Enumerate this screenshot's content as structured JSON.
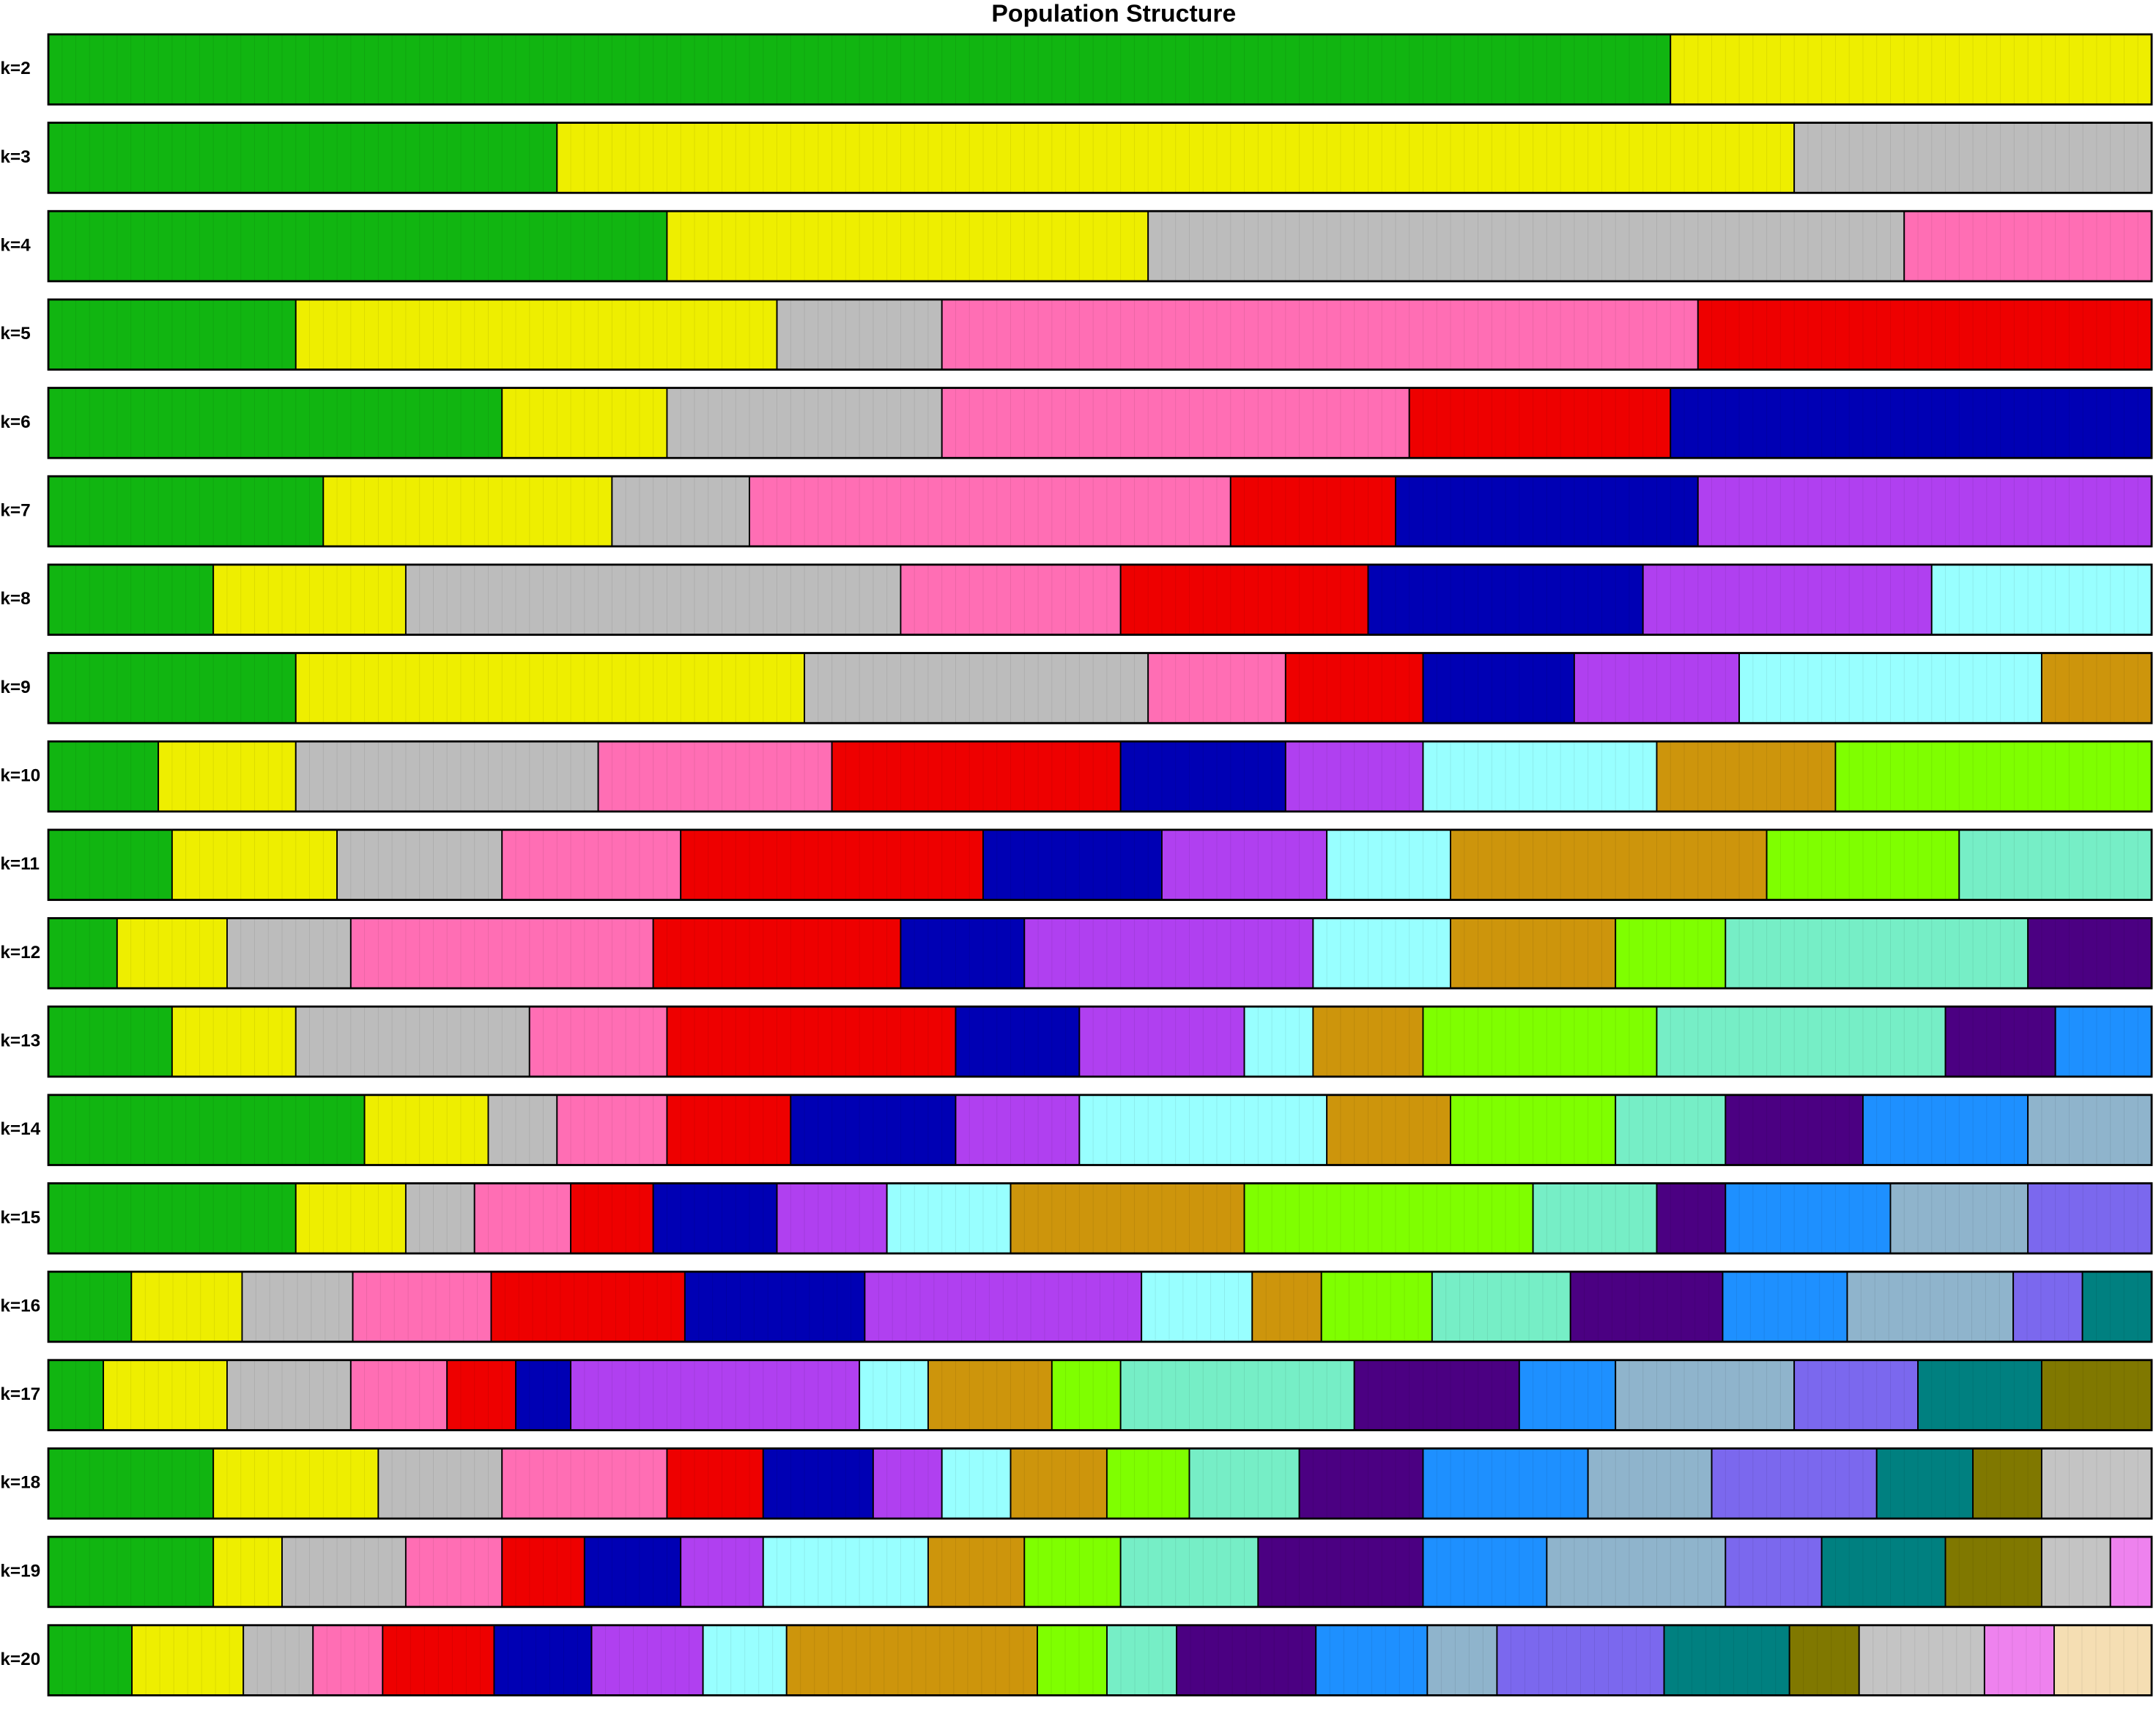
{
  "chart_data": {
    "type": "structure",
    "title": "Population Structure",
    "panels": [
      {
        "label": "k=2",
        "counts": [
          118,
          35
        ],
        "colors": [
          "#11b511",
          "#eeee00"
        ]
      },
      {
        "label": "k=3",
        "counts": [
          37,
          90,
          26
        ],
        "colors": [
          "#11b511",
          "#eeee00",
          "#bcbcbc"
        ]
      },
      {
        "label": "k=4",
        "counts": [
          45,
          35,
          55,
          18
        ],
        "colors": [
          "#11b511",
          "#eeee00",
          "#bcbcbc",
          "#ff6eb4"
        ]
      },
      {
        "label": "k=5",
        "counts": [
          18,
          35,
          12,
          55,
          33
        ],
        "colors": [
          "#11b511",
          "#eeee00",
          "#bcbcbc",
          "#ff6eb4",
          "#ee0000"
        ]
      },
      {
        "label": "k=6",
        "counts": [
          33,
          12,
          20,
          34,
          19,
          35
        ],
        "colors": [
          "#11b511",
          "#eeee00",
          "#bcbcbc",
          "#ff6eb4",
          "#ee0000",
          "#0000b4"
        ]
      },
      {
        "label": "k=7",
        "counts": [
          20,
          21,
          10,
          35,
          12,
          22,
          33
        ],
        "colors": [
          "#11b511",
          "#eeee00",
          "#bcbcbc",
          "#ff6eb4",
          "#ee0000",
          "#0000b4",
          "#b040f0"
        ]
      },
      {
        "label": "k=8",
        "counts": [
          12,
          14,
          36,
          16,
          18,
          20,
          21,
          16
        ],
        "colors": [
          "#11b511",
          "#eeee00",
          "#bcbcbc",
          "#ff6eb4",
          "#ee0000",
          "#0000b4",
          "#b040f0",
          "#98ffff"
        ]
      },
      {
        "label": "k=9",
        "counts": [
          18,
          37,
          25,
          10,
          10,
          11,
          12,
          22,
          8
        ],
        "colors": [
          "#11b511",
          "#eeee00",
          "#bcbcbc",
          "#ff6eb4",
          "#ee0000",
          "#0000b4",
          "#b040f0",
          "#98ffff",
          "#cd950c"
        ]
      },
      {
        "label": "k=10",
        "counts": [
          8,
          10,
          22,
          17,
          21,
          12,
          10,
          17,
          13,
          23
        ],
        "colors": [
          "#11b511",
          "#eeee00",
          "#bcbcbc",
          "#ff6eb4",
          "#ee0000",
          "#0000b4",
          "#b040f0",
          "#98ffff",
          "#cd950c",
          "#7fff00"
        ]
      },
      {
        "label": "k=11",
        "counts": [
          9,
          12,
          12,
          13,
          22,
          13,
          12,
          9,
          23,
          14,
          14
        ],
        "colors": [
          "#11b511",
          "#eeee00",
          "#bcbcbc",
          "#ff6eb4",
          "#ee0000",
          "#0000b4",
          "#b040f0",
          "#98ffff",
          "#cd950c",
          "#7fff00",
          "#76eec6"
        ]
      },
      {
        "label": "k=12",
        "counts": [
          5,
          8,
          9,
          22,
          18,
          9,
          21,
          10,
          12,
          8,
          22,
          9
        ],
        "colors": [
          "#11b511",
          "#eeee00",
          "#bcbcbc",
          "#ff6eb4",
          "#ee0000",
          "#0000b4",
          "#b040f0",
          "#98ffff",
          "#cd950c",
          "#7fff00",
          "#76eec6",
          "#4b0082"
        ]
      },
      {
        "label": "k=13",
        "counts": [
          9,
          9,
          17,
          10,
          21,
          9,
          12,
          5,
          8,
          17,
          21,
          8,
          7
        ],
        "colors": [
          "#11b511",
          "#eeee00",
          "#bcbcbc",
          "#ff6eb4",
          "#ee0000",
          "#0000b4",
          "#b040f0",
          "#98ffff",
          "#cd950c",
          "#7fff00",
          "#76eec6",
          "#4b0082",
          "#1e90ff"
        ]
      },
      {
        "label": "k=14",
        "counts": [
          23,
          9,
          5,
          8,
          9,
          12,
          9,
          18,
          9,
          12,
          8,
          10,
          12,
          9
        ],
        "colors": [
          "#11b511",
          "#eeee00",
          "#bcbcbc",
          "#ff6eb4",
          "#ee0000",
          "#0000b4",
          "#b040f0",
          "#98ffff",
          "#cd950c",
          "#7fff00",
          "#76eec6",
          "#4b0082",
          "#1e90ff",
          "#8fb4cc"
        ]
      },
      {
        "label": "k=15",
        "counts": [
          18,
          8,
          5,
          7,
          6,
          9,
          8,
          9,
          17,
          21,
          9,
          5,
          12,
          10,
          9
        ],
        "colors": [
          "#11b511",
          "#eeee00",
          "#bcbcbc",
          "#ff6eb4",
          "#ee0000",
          "#0000b4",
          "#b040f0",
          "#98ffff",
          "#cd950c",
          "#7fff00",
          "#76eec6",
          "#4b0082",
          "#1e90ff",
          "#8fb4cc",
          "#7b68ee"
        ]
      },
      {
        "label": "k=16",
        "counts": [
          6,
          8,
          8,
          10,
          14,
          13,
          20,
          8,
          5,
          8,
          10,
          11,
          9,
          12,
          5,
          5
        ],
        "colors": [
          "#11b511",
          "#eeee00",
          "#bcbcbc",
          "#ff6eb4",
          "#ee0000",
          "#0000b4",
          "#b040f0",
          "#98ffff",
          "#cd950c",
          "#7fff00",
          "#76eec6",
          "#4b0082",
          "#1e90ff",
          "#8fb4cc",
          "#7b68ee",
          "#008080"
        ]
      },
      {
        "label": "k=17",
        "counts": [
          4,
          9,
          9,
          7,
          5,
          4,
          21,
          5,
          9,
          5,
          17,
          12,
          7,
          13,
          9,
          9,
          8
        ],
        "colors": [
          "#11b511",
          "#eeee00",
          "#bcbcbc",
          "#ff6eb4",
          "#ee0000",
          "#0000b4",
          "#b040f0",
          "#98ffff",
          "#cd950c",
          "#7fff00",
          "#76eec6",
          "#4b0082",
          "#1e90ff",
          "#8fb4cc",
          "#7b68ee",
          "#008080",
          "#807800"
        ]
      },
      {
        "label": "k=18",
        "counts": [
          12,
          12,
          9,
          12,
          7,
          8,
          5,
          5,
          7,
          6,
          8,
          9,
          12,
          9,
          12,
          7,
          5,
          8
        ],
        "colors": [
          "#11b511",
          "#eeee00",
          "#bcbcbc",
          "#ff6eb4",
          "#ee0000",
          "#0000b4",
          "#b040f0",
          "#98ffff",
          "#cd950c",
          "#7fff00",
          "#76eec6",
          "#4b0082",
          "#1e90ff",
          "#8fb4cc",
          "#7b68ee",
          "#008080",
          "#807800",
          "#c4c4c4"
        ]
      },
      {
        "label": "k=19",
        "counts": [
          12,
          5,
          9,
          7,
          6,
          7,
          6,
          12,
          7,
          7,
          10,
          12,
          9,
          13,
          7,
          9,
          7,
          5,
          3
        ],
        "colors": [
          "#11b511",
          "#eeee00",
          "#bcbcbc",
          "#ff6eb4",
          "#ee0000",
          "#0000b4",
          "#b040f0",
          "#98ffff",
          "#cd950c",
          "#7fff00",
          "#76eec6",
          "#4b0082",
          "#1e90ff",
          "#8fb4cc",
          "#7b68ee",
          "#008080",
          "#807800",
          "#c4c4c4",
          "#ee82ee"
        ]
      },
      {
        "label": "k=20",
        "counts": [
          6,
          8,
          5,
          5,
          8,
          7,
          8,
          6,
          18,
          5,
          5,
          10,
          8,
          5,
          12,
          9,
          5,
          9,
          5,
          7
        ],
        "colors": [
          "#11b511",
          "#eeee00",
          "#bcbcbc",
          "#ff6eb4",
          "#ee0000",
          "#0000b4",
          "#b040f0",
          "#98ffff",
          "#cd950c",
          "#7fff00",
          "#76eec6",
          "#4b0082",
          "#1e90ff",
          "#8fb4cc",
          "#7b68ee",
          "#008080",
          "#807800",
          "#c4c4c4",
          "#ee82ee",
          "#f5deb3"
        ]
      }
    ]
  }
}
